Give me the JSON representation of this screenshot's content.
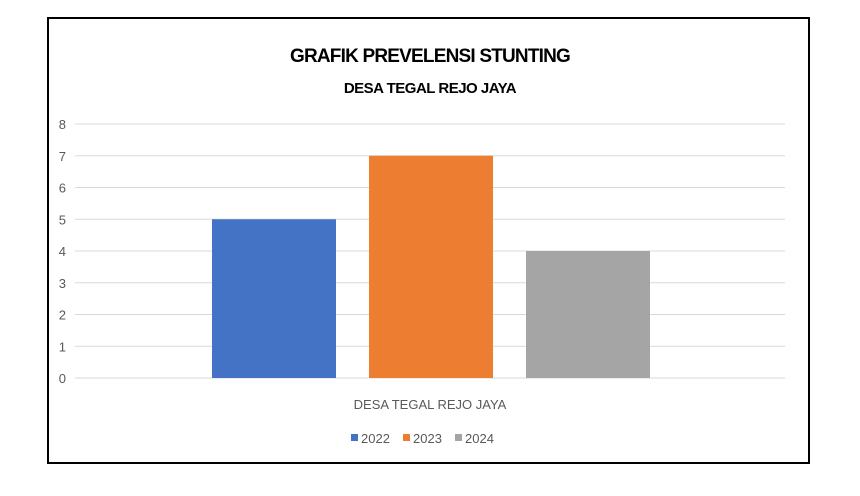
{
  "chart_data": {
    "type": "bar",
    "title": "GRAFIK PREVELENSI STUNTING",
    "subtitle": "DESA TEGAL REJO JAYA",
    "categories": [
      "DESA TEGAL REJO JAYA"
    ],
    "series": [
      {
        "name": "2022",
        "values": [
          5
        ],
        "color": "#4472C4"
      },
      {
        "name": "2023",
        "values": [
          7
        ],
        "color": "#ED7D31"
      },
      {
        "name": "2024",
        "values": [
          4
        ],
        "color": "#A5A5A5"
      }
    ],
    "xlabel": "",
    "ylabel": "",
    "ylim": [
      0,
      8
    ],
    "yticks": [
      "0",
      "1",
      "2",
      "3",
      "4",
      "5",
      "6",
      "7",
      "8"
    ],
    "grid": true,
    "legend": "bottom"
  }
}
